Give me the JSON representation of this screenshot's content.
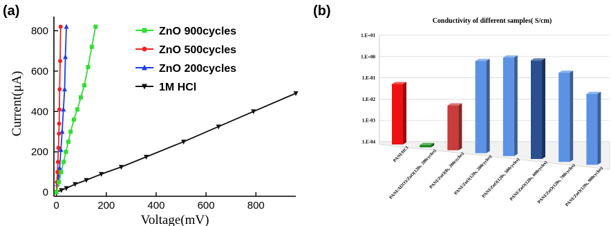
{
  "chart_data": [
    {
      "panel": "(a)",
      "type": "line",
      "xlabel": "Voltage(mV)",
      "ylabel": "Current(μA)",
      "xlim": [
        -10,
        960
      ],
      "ylim": [
        -20,
        870
      ],
      "xticks": [
        0,
        200,
        400,
        600,
        800
      ],
      "yticks": [
        0,
        200,
        400,
        600,
        800
      ],
      "legend_position": "top-right",
      "series": [
        {
          "name": "ZnO 900cycles",
          "color": "#33dd33",
          "marker": "square",
          "x": [
            0,
            10,
            19,
            29,
            38,
            48,
            57,
            70,
            84,
            98,
            112,
            127,
            142,
            157
          ],
          "y": [
            0,
            50,
            100,
            150,
            200,
            250,
            300,
            360,
            410,
            470,
            530,
            620,
            720,
            820
          ]
        },
        {
          "name": "ZnO 500cycles",
          "color": "#ee2222",
          "marker": "circle",
          "x": [
            0,
            2,
            4,
            6,
            8,
            10,
            11,
            12,
            13,
            15,
            17
          ],
          "y": [
            0,
            50,
            100,
            150,
            220,
            290,
            340,
            410,
            510,
            650,
            820
          ]
        },
        {
          "name": "ZnO 200cycles",
          "color": "#1a3ee8",
          "marker": "triangle-up",
          "x": [
            0,
            4,
            9,
            13,
            18,
            23,
            28,
            33,
            36,
            40
          ],
          "y": [
            0,
            40,
            80,
            120,
            210,
            300,
            410,
            510,
            670,
            820
          ]
        },
        {
          "name": "1M HCl",
          "color": "#111111",
          "marker": "triangle-down",
          "x": [
            0,
            20,
            40,
            75,
            120,
            180,
            260,
            360,
            510,
            650,
            790,
            960
          ],
          "y": [
            0,
            10,
            20,
            40,
            60,
            90,
            125,
            175,
            250,
            325,
            400,
            490
          ]
        }
      ]
    },
    {
      "panel": "(b)",
      "type": "bar",
      "title": "Conductivity of different samples( S/cm)",
      "yscale": "log",
      "ylim": [
        0.0001,
        10
      ],
      "yticks": [
        "1.E-04",
        "1.E-03",
        "1.E-02",
        "1.E-01",
        "1.E+00",
        "1.E+01"
      ],
      "categories": [
        "PANI/HCl",
        "PANI/Al2O3/ZnO(120s, 200cycles)",
        "PANI/ZnO(8s, 200cycles)",
        "PANI/ZnO(120s, 200cycles)",
        "PANI/ZnO(120s, 500cycles)",
        "PANI/ZnO(120s, 600cycles)",
        "PANI/ZnO(120s, 700cycles)",
        "PANI/ZnO(120s, 900cycles)"
      ],
      "values": [
        0.08,
        0.00015,
        0.015,
        2.5,
        5.0,
        5.0,
        1.8,
        0.25
      ],
      "colors": [
        "#ee1111",
        "#1a8a1a",
        "#c83c3c",
        "#5b92e5",
        "#5b92e5",
        "#2a4f8f",
        "#5b92e5",
        "#5b92e5"
      ]
    }
  ]
}
